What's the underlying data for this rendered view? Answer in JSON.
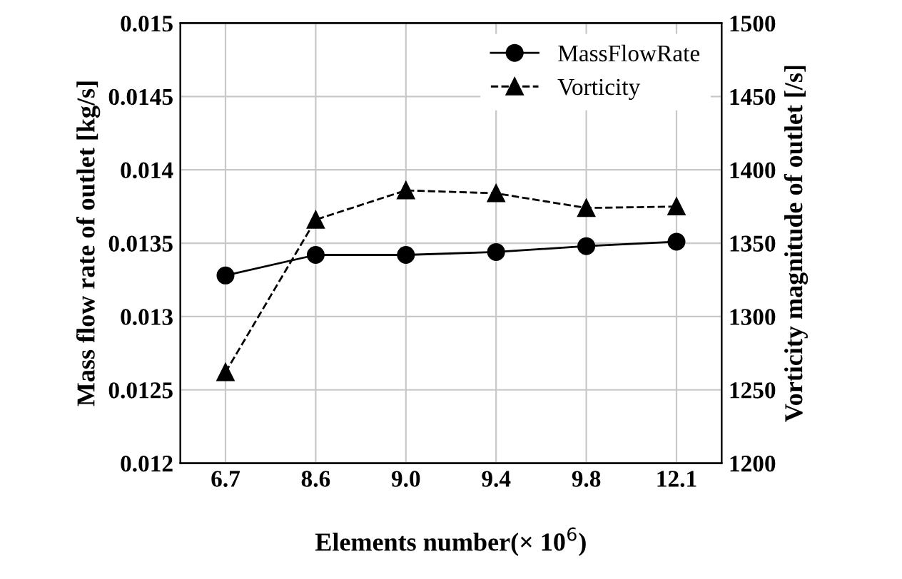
{
  "chart_data": {
    "type": "line",
    "xlabel": "Elements number(× 10$^{6}$)",
    "ylabel": "Mass flow rate of outlet [kg/s]",
    "y2label": "Vorticity magnitude of outlet [/s]",
    "categories": [
      "6.7",
      "8.6",
      "9.0",
      "9.4",
      "9.8",
      "12.1"
    ],
    "series": [
      {
        "name": "MassFlowRate",
        "color": "#000000",
        "marker": "circle",
        "line_style": "solid",
        "values": [
          0.01328,
          0.01342,
          0.01342,
          0.01344,
          0.01348,
          0.01351
        ]
      },
      {
        "name": "Vorticity",
        "color": "#000000",
        "marker": "triangle",
        "line_style": "dashed",
        "axis": "y2",
        "values": [
          1262,
          1366,
          1386,
          1384,
          1374,
          1375
        ]
      }
    ],
    "ylim": [
      0.012,
      0.015
    ],
    "yticks": [
      0.012,
      0.0125,
      0.013,
      0.0135,
      0.014,
      0.0145,
      0.015
    ],
    "y2lim": [
      1200,
      1500
    ],
    "y2ticks": [
      1200,
      1250,
      1300,
      1350,
      1400,
      1450,
      1500
    ],
    "grid": true,
    "legend": "top right"
  }
}
